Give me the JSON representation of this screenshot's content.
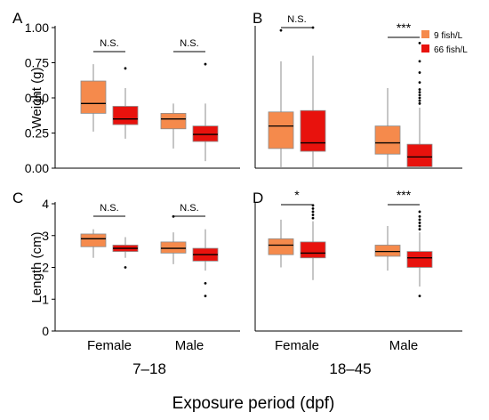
{
  "colors": {
    "low": "#f58a4c",
    "high": "#e8120d",
    "median": "#000000"
  },
  "legend": [
    {
      "label": "9 fish/L",
      "color": "#f58a4c"
    },
    {
      "label": "66 fish/L",
      "color": "#e8120d"
    }
  ],
  "xlabel": "Exposure period (dpf)",
  "periods": [
    "7–18",
    "18–45"
  ],
  "categories": [
    "Female",
    "Male"
  ],
  "chart_data": [
    {
      "panel": "A",
      "type": "box",
      "ylabel": "Weight (g)",
      "ylim": [
        0,
        1.0
      ],
      "yticks": [
        "0.00",
        "0.25",
        "0.50",
        "0.75",
        "1.00"
      ],
      "categories": [
        "Female",
        "Male"
      ],
      "significance": [
        "N.S.",
        "N.S."
      ],
      "series": [
        {
          "name": "9 fish/L",
          "boxes": [
            {
              "category": "Female",
              "min": 0.26,
              "q1": 0.39,
              "median": 0.46,
              "q3": 0.62,
              "max": 0.74,
              "outliers": []
            },
            {
              "category": "Male",
              "min": 0.14,
              "q1": 0.28,
              "median": 0.35,
              "q3": 0.39,
              "max": 0.46,
              "outliers": []
            }
          ]
        },
        {
          "name": "66 fish/L",
          "boxes": [
            {
              "category": "Female",
              "min": 0.21,
              "q1": 0.31,
              "median": 0.35,
              "q3": 0.44,
              "max": 0.57,
              "outliers": [
                0.71
              ]
            },
            {
              "category": "Male",
              "min": 0.05,
              "q1": 0.19,
              "median": 0.24,
              "q3": 0.3,
              "max": 0.46,
              "outliers": [
                0.74
              ]
            }
          ]
        }
      ]
    },
    {
      "panel": "B",
      "type": "box",
      "ylabel": "",
      "ylim": [
        0,
        1.0
      ],
      "yticks": [],
      "categories": [
        "Female",
        "Male"
      ],
      "significance": [
        "N.S.",
        "***"
      ],
      "series": [
        {
          "name": "9 fish/L",
          "boxes": [
            {
              "category": "Female",
              "min": 0.0,
              "q1": 0.14,
              "median": 0.3,
              "q3": 0.4,
              "max": 0.76,
              "outliers": [
                0.98
              ]
            },
            {
              "category": "Male",
              "min": 0.0,
              "q1": 0.1,
              "median": 0.18,
              "q3": 0.3,
              "max": 0.57,
              "outliers": []
            }
          ]
        },
        {
          "name": "66 fish/L",
          "boxes": [
            {
              "category": "Female",
              "min": 0.0,
              "q1": 0.12,
              "median": 0.18,
              "q3": 0.41,
              "max": 0.8,
              "outliers": [
                1.0
              ]
            },
            {
              "category": "Male",
              "min": 0.0,
              "q1": 0.01,
              "median": 0.08,
              "q3": 0.17,
              "max": 0.43,
              "outliers": [
                0.46,
                0.48,
                0.5,
                0.52,
                0.54,
                0.56,
                0.61,
                0.68,
                0.76,
                0.89
              ]
            }
          ]
        }
      ]
    },
    {
      "panel": "C",
      "type": "box",
      "ylabel": "Length (cm)",
      "ylim": [
        0,
        4
      ],
      "yticks": [
        "0",
        "1",
        "2",
        "3",
        "4"
      ],
      "categories": [
        "Female",
        "Male"
      ],
      "significance": [
        "N.S.",
        "N.S."
      ],
      "series": [
        {
          "name": "9 fish/L",
          "boxes": [
            {
              "category": "Female",
              "min": 2.3,
              "q1": 2.65,
              "median": 2.9,
              "q3": 3.05,
              "max": 3.2,
              "outliers": []
            },
            {
              "category": "Male",
              "min": 2.1,
              "q1": 2.45,
              "median": 2.6,
              "q3": 2.8,
              "max": 3.1,
              "outliers": [
                3.6
              ]
            }
          ]
        },
        {
          "name": "66 fish/L",
          "boxes": [
            {
              "category": "Female",
              "min": 2.3,
              "q1": 2.5,
              "median": 2.6,
              "q3": 2.7,
              "max": 2.95,
              "outliers": [
                2.0
              ]
            },
            {
              "category": "Male",
              "min": 1.9,
              "q1": 2.2,
              "median": 2.4,
              "q3": 2.6,
              "max": 3.2,
              "outliers": [
                1.5,
                1.1
              ]
            }
          ]
        }
      ]
    },
    {
      "panel": "D",
      "type": "box",
      "ylabel": "",
      "ylim": [
        0,
        4
      ],
      "yticks": [],
      "categories": [
        "Female",
        "Male"
      ],
      "significance": [
        "*",
        "***"
      ],
      "series": [
        {
          "name": "9 fish/L",
          "boxes": [
            {
              "category": "Female",
              "min": 2.0,
              "q1": 2.4,
              "median": 2.7,
              "q3": 2.9,
              "max": 3.5,
              "outliers": []
            },
            {
              "category": "Male",
              "min": 1.9,
              "q1": 2.35,
              "median": 2.5,
              "q3": 2.7,
              "max": 3.3,
              "outliers": []
            }
          ]
        },
        {
          "name": "66 fish/L",
          "boxes": [
            {
              "category": "Female",
              "min": 1.6,
              "q1": 2.3,
              "median": 2.45,
              "q3": 2.8,
              "max": 3.45,
              "outliers": [
                3.55,
                3.65,
                3.75,
                3.85,
                3.95
              ]
            },
            {
              "category": "Male",
              "min": 1.4,
              "q1": 2.0,
              "median": 2.3,
              "q3": 2.5,
              "max": 3.1,
              "outliers": [
                3.2,
                3.3,
                3.4,
                3.5,
                3.6,
                3.75,
                1.1
              ]
            }
          ]
        }
      ]
    }
  ]
}
